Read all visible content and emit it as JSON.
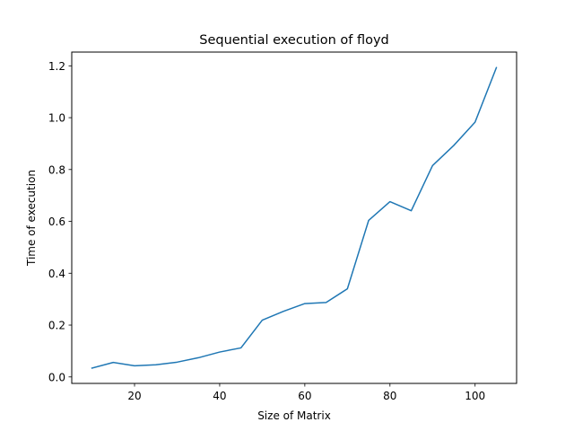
{
  "chart_data": {
    "type": "line",
    "title": "Sequential execution of floyd",
    "xlabel": "Size of Matrix",
    "ylabel": "Time of execution",
    "xlim": [
      5.25,
      109.75
    ],
    "ylim": [
      -0.025,
      1.253
    ],
    "xticks": [
      20,
      40,
      60,
      80,
      100
    ],
    "yticks": [
      0.0,
      0.2,
      0.4,
      0.6,
      0.8,
      1.0,
      1.2
    ],
    "xtick_labels": [
      "20",
      "40",
      "60",
      "80",
      "100"
    ],
    "ytick_labels": [
      "0.0",
      "0.2",
      "0.4",
      "0.6",
      "0.8",
      "1.0",
      "1.2"
    ],
    "grid": false,
    "legend": "none",
    "series": [
      {
        "color": "#1f77b4",
        "x": [
          10,
          15,
          20,
          25,
          30,
          35,
          40,
          45,
          50,
          55,
          60,
          65,
          70,
          75,
          80,
          85,
          90,
          95,
          100,
          105
        ],
        "y": [
          0.034,
          0.056,
          0.043,
          0.047,
          0.057,
          0.074,
          0.096,
          0.112,
          0.219,
          0.253,
          0.283,
          0.287,
          0.34,
          0.604,
          0.676,
          0.641,
          0.815,
          0.893,
          0.983,
          1.193
        ]
      }
    ]
  }
}
